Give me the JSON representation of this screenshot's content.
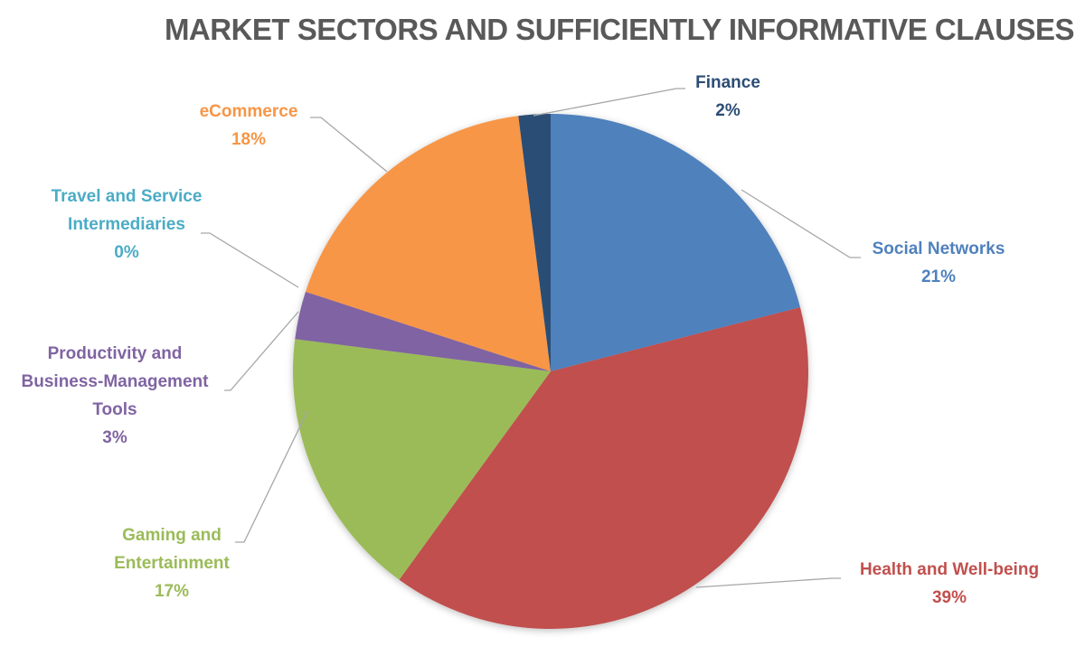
{
  "chart_data": {
    "type": "pie",
    "title": "MARKET SECTORS AND SUFFICIENTLY INFORMATIVE CLAUSES",
    "categories": [
      "Social Networks",
      "Health and Well-being",
      "Gaming and Entertainment",
      "Productivity and Business-Management Tools",
      "Travel and Service Intermediaries",
      "eCommerce",
      "Finance"
    ],
    "values": [
      21,
      39,
      17,
      3,
      0,
      18,
      2
    ],
    "value_labels": [
      "21%",
      "39%",
      "17%",
      "3%",
      "0%",
      "18%",
      "2%"
    ],
    "colors": [
      "#4F81BD",
      "#C0504D",
      "#9BBB59",
      "#8064A2",
      "#4BACC6",
      "#F79646",
      "#2C4D75"
    ],
    "legend": "none (data labels with leader lines)"
  },
  "labels": {
    "social": {
      "name": "Social Networks",
      "pct": "21%"
    },
    "health": {
      "name": "Health and Well-being",
      "pct": "39%"
    },
    "gaming": {
      "l1": "Gaming and",
      "l2": "Entertainment",
      "pct": "17%"
    },
    "productivity": {
      "l1": "Productivity and",
      "l2": "Business-Management",
      "l3": "Tools",
      "pct": "3%"
    },
    "travel": {
      "l1": "Travel and Service",
      "l2": "Intermediaries",
      "pct": "0%"
    },
    "ecommerce": {
      "name": "eCommerce",
      "pct": "18%"
    },
    "finance": {
      "name": "Finance",
      "pct": "2%"
    }
  }
}
